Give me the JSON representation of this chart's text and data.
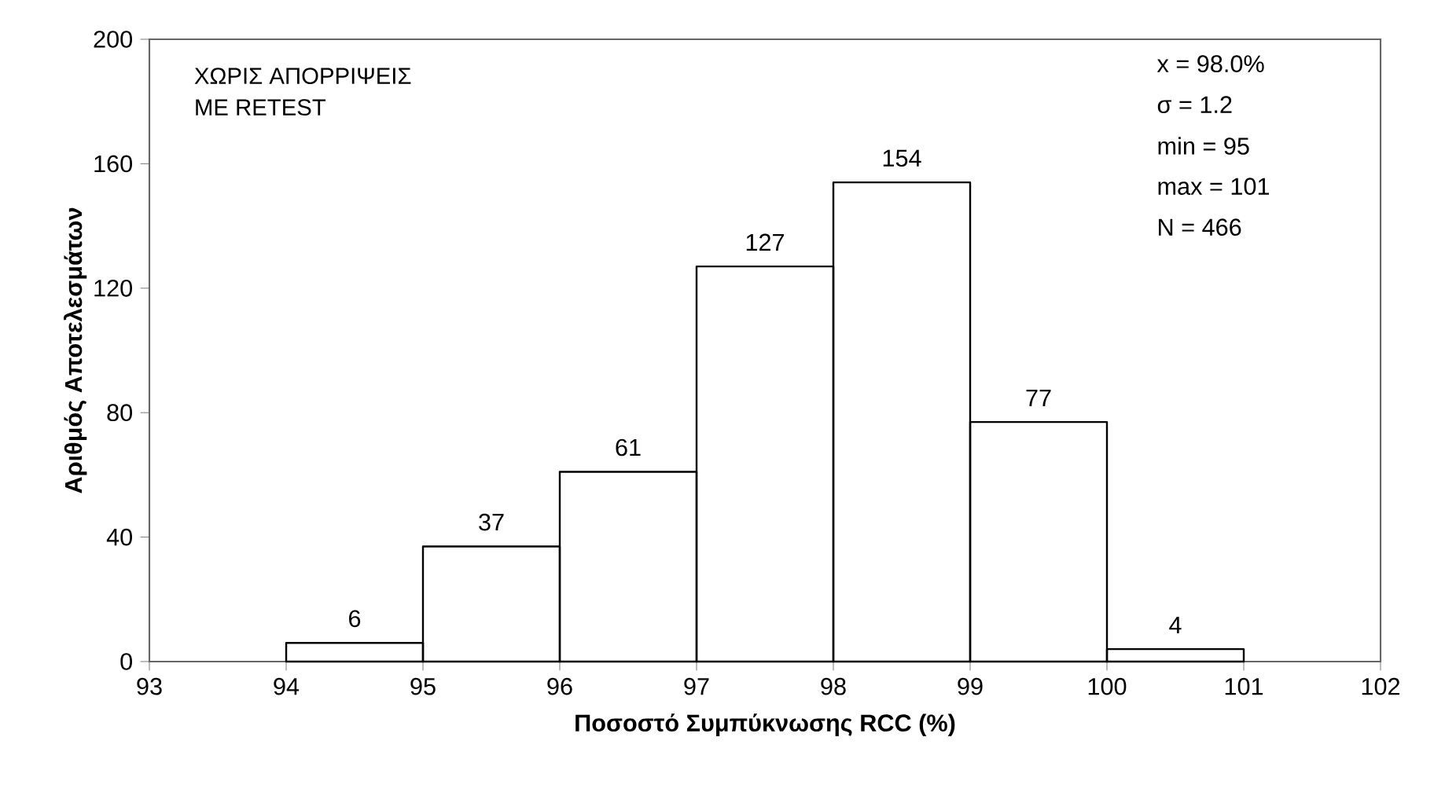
{
  "chart_data": {
    "type": "histogram",
    "xlabel": "Ποσοστό Συμπύκνωσης RCC (%)",
    "ylabel": "Αριθμός Αποτελεσμάτων",
    "bins": [
      94,
      95,
      96,
      97,
      98,
      99,
      100,
      101
    ],
    "values": [
      6,
      37,
      61,
      127,
      154,
      77,
      4
    ],
    "color": "#000000",
    "data_labels": true,
    "xlim": [
      93,
      102
    ],
    "xticks": [
      93,
      94,
      95,
      96,
      97,
      98,
      99,
      100,
      101,
      102
    ],
    "ylim": [
      0,
      200
    ],
    "yticks": [
      0,
      40,
      80,
      120,
      160,
      200
    ],
    "grid": false,
    "annotations": [
      "ΧΩΡΙΣ ΑΠΟΡΡΙΨΕΙΣ",
      "ΜΕ RETEST",
      "x = 98.0%",
      "σ = 1.2",
      "min = 95",
      "max = 101",
      "N = 466"
    ]
  }
}
